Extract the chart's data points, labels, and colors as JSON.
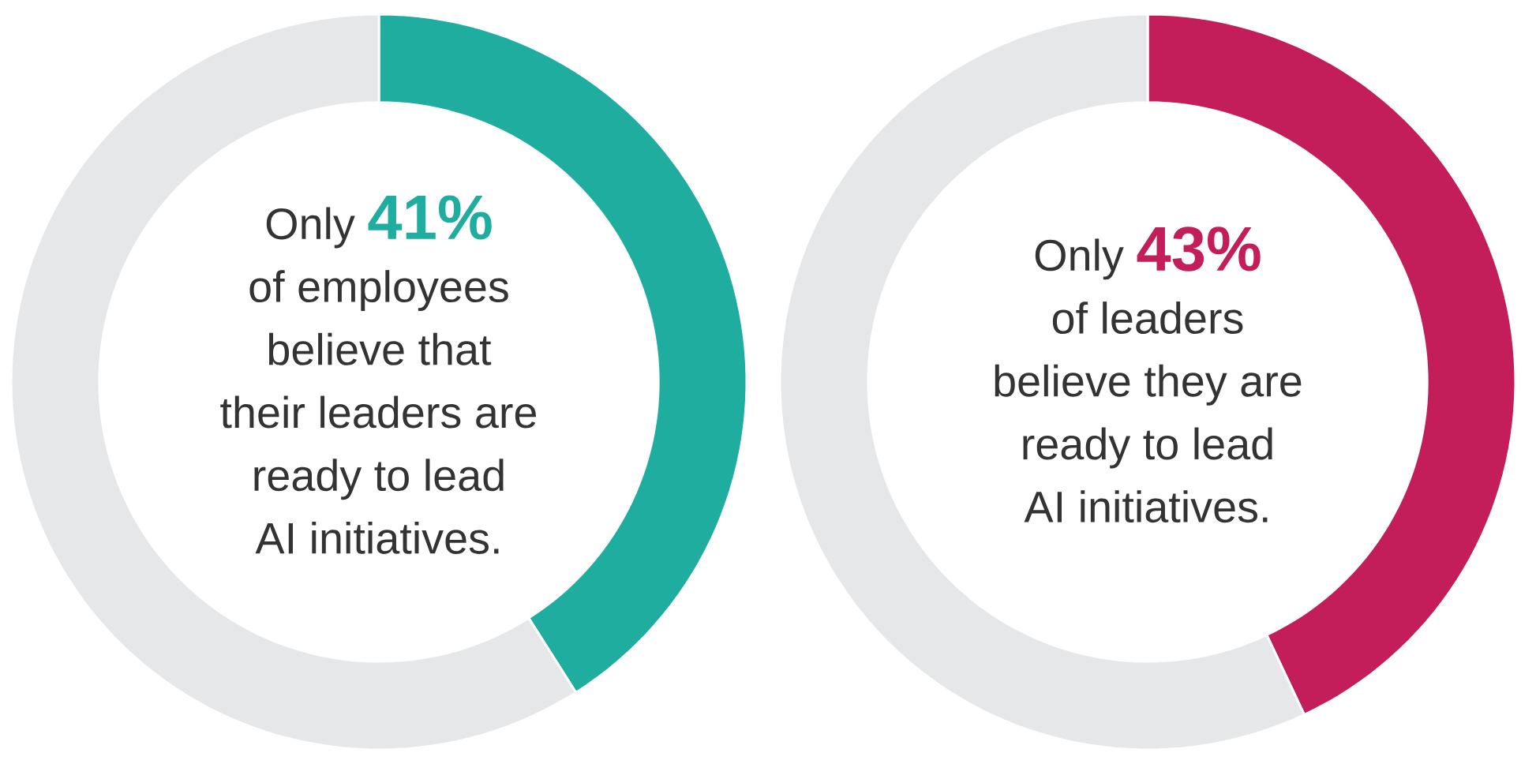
{
  "chart_data": [
    {
      "type": "donut",
      "categories": [
        null,
        null
      ],
      "values": [
        41,
        59
      ],
      "colors": [
        "#1fada0",
        "#e6e7e8"
      ],
      "value_labels": [
        "41%",
        null
      ],
      "annotations": [
        "Only",
        "of employees",
        "believe that",
        "their leaders are",
        "ready to lead",
        "AI initiatives."
      ]
    },
    {
      "type": "donut",
      "categories": [
        null,
        null
      ],
      "values": [
        43,
        57
      ],
      "colors": [
        "#c41e5a",
        "#e6e7e8"
      ],
      "value_labels": [
        "43%",
        null
      ],
      "annotations": [
        "Only",
        "of leaders",
        "believe they are",
        "ready to lead",
        "AI initiatives."
      ]
    }
  ]
}
